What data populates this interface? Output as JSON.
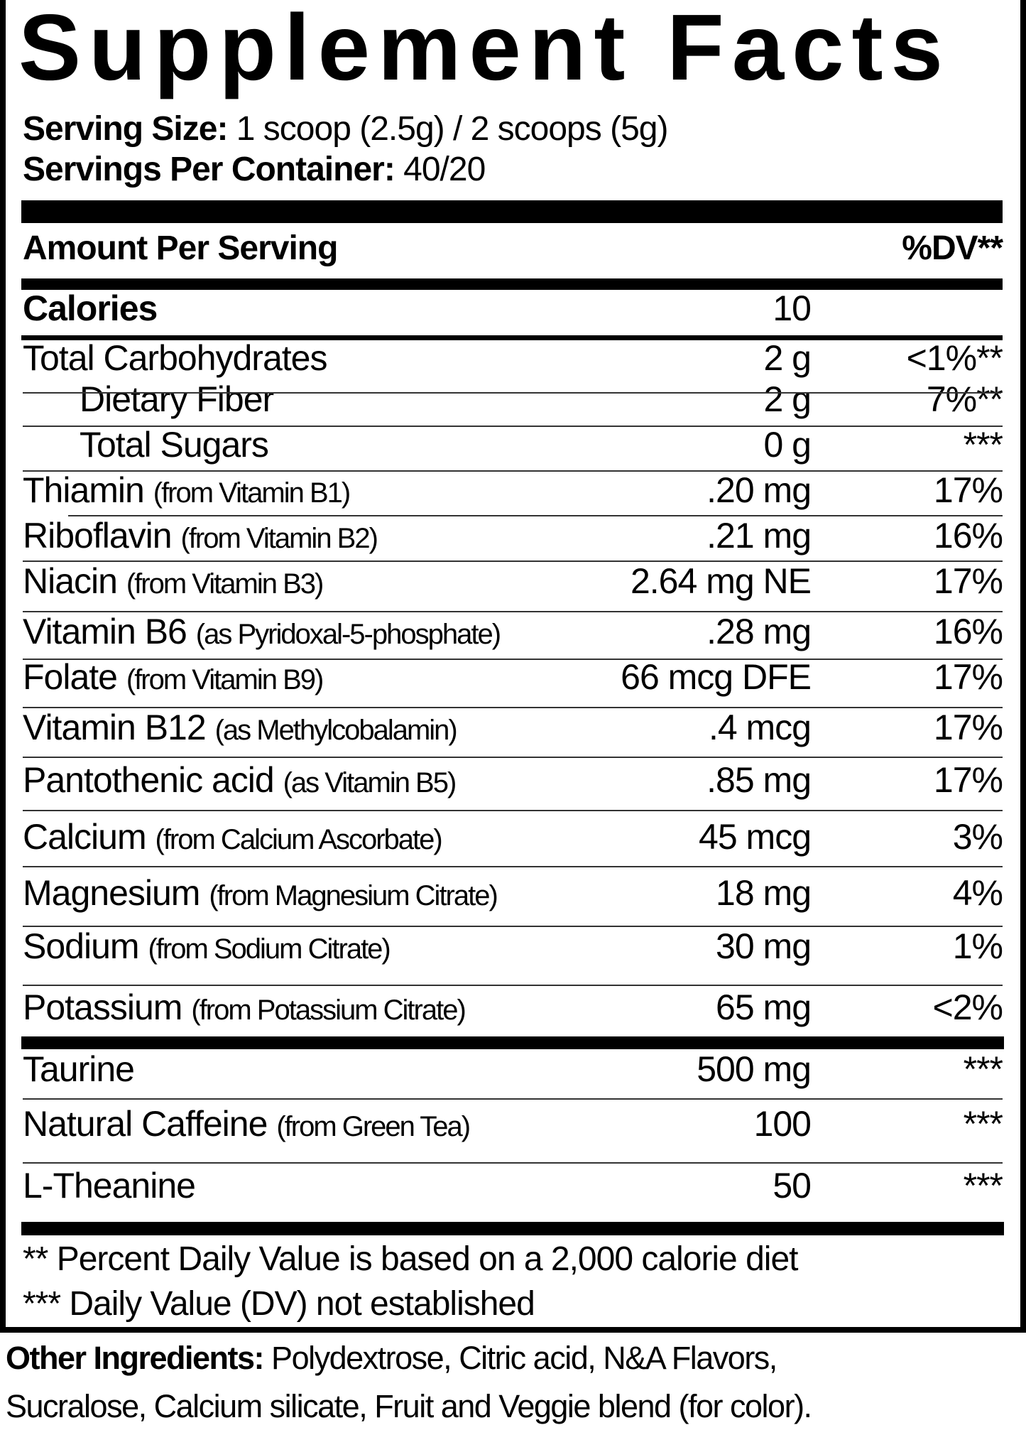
{
  "title": "Supplement Facts",
  "serving_size": {
    "label": "Serving Size:",
    "value": " 1 scoop (2.5g) / 2 scoops (5g)"
  },
  "servings_per_container": {
    "label": "Servings Per Container:",
    "value": " 40/20"
  },
  "header": {
    "amount_per_serving": "Amount Per Serving",
    "dv": "%DV**"
  },
  "rows": [
    {
      "name": "Calories",
      "sub": "",
      "amount": "10",
      "dv": "",
      "bold": true
    },
    {
      "name": "Total Carbohydrates",
      "sub": "",
      "amount": "2 g",
      "dv": "<1%**"
    },
    {
      "name": "Dietary Fiber",
      "sub": "",
      "amount": "2 g",
      "dv": "7%**",
      "indent": true
    },
    {
      "name": "Total Sugars",
      "sub": "",
      "amount": "0 g",
      "dv": "***",
      "indent": true
    },
    {
      "name": "Thiamin",
      "sub": "(from Vitamin B1)",
      "amount": ".20 mg",
      "dv": "17%"
    },
    {
      "name": "Riboflavin",
      "sub": "(from Vitamin B2)",
      "amount": ".21 mg",
      "dv": "16%"
    },
    {
      "name": "Niacin",
      "sub": "(from Vitamin B3)",
      "amount": "2.64 mg NE",
      "dv": "17%"
    },
    {
      "name": "Vitamin B6",
      "sub": "(as Pyridoxal-5-phosphate)",
      "amount": ".28 mg",
      "dv": "16%"
    },
    {
      "name": "Folate",
      "sub": "(from Vitamin B9)",
      "amount": "66 mcg DFE",
      "dv": "17%"
    },
    {
      "name": "Vitamin B12",
      "sub": "(as Methylcobalamin)",
      "amount": ".4 mcg",
      "dv": "17%"
    },
    {
      "name": "Pantothenic acid",
      "sub": "(as Vitamin B5)",
      "amount": ".85 mg",
      "dv": "17%"
    },
    {
      "name": "Calcium",
      "sub": "(from Calcium Ascorbate)",
      "amount": "45 mcg",
      "dv": "3%"
    },
    {
      "name": "Magnesium",
      "sub": "(from Magnesium Citrate)",
      "amount": "18 mg",
      "dv": "4%"
    },
    {
      "name": "Sodium",
      "sub": "(from Sodium Citrate)",
      "amount": "30 mg",
      "dv": "1%"
    },
    {
      "name": "Potassium",
      "sub": "(from Potassium Citrate)",
      "amount": "65 mg",
      "dv": "<2%"
    },
    {
      "name": "Taurine",
      "sub": "",
      "amount": "500 mg",
      "dv": "***"
    },
    {
      "name": "Natural Caffeine",
      "sub": "(from Green Tea)",
      "amount": "100",
      "dv": "***"
    },
    {
      "name": "L-Theanine",
      "sub": "",
      "amount": "50",
      "dv": "***"
    }
  ],
  "footnotes": [
    "** Percent Daily Value is based on a 2,000 calorie diet",
    "*** Daily Value (DV) not established"
  ],
  "other_ingredients": {
    "label": "Other Ingredients:",
    "line1": " Polydextrose, Citric acid, N&A Flavors,",
    "line2": "Sucralose, Calcium silicate, Fruit and Veggie blend (for color)."
  }
}
